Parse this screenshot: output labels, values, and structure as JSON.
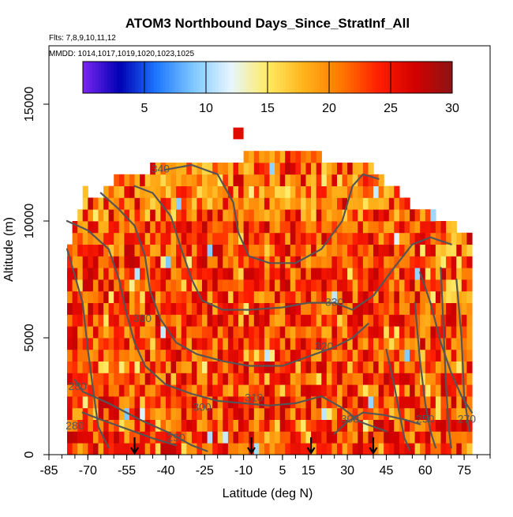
{
  "chart_data": {
    "type": "heatmap",
    "title": "ATOM3 Northbound Days_Since_StratInf_All",
    "flights_note": "Flts: 7,8,9,10,11,12",
    "dates_note": "MMDD: 1014,1017,1019,1020,1023,1025",
    "xlabel": "Latitude (deg N)",
    "ylabel": "Altitude (m)",
    "xlim": [
      -85,
      85
    ],
    "ylim": [
      0,
      17500
    ],
    "x_ticks": [
      -85,
      -70,
      -55,
      -40,
      -25,
      -10,
      5,
      15,
      30,
      45,
      60,
      75
    ],
    "y_ticks": [
      0,
      5000,
      10000,
      15000
    ],
    "colorbar": {
      "range": [
        0,
        30
      ],
      "ticks": [
        5,
        10,
        15,
        20,
        25,
        30
      ],
      "colors": [
        "#7c26f2",
        "#0000b4",
        "#1e78ff",
        "#7fc8ff",
        "#e6f6ff",
        "#ffeb63",
        "#ffb21a",
        "#ff7800",
        "#ff1e00",
        "#d20000",
        "#8c1414"
      ]
    },
    "arrows_latitude": [
      -52,
      -7,
      16,
      40
    ],
    "contour_labels": [
      {
        "text": "340",
        "lat": -42,
        "alt": 12200
      },
      {
        "text": "300",
        "lat": -49,
        "alt": 5800
      },
      {
        "text": "330",
        "lat": 25,
        "alt": 6500
      },
      {
        "text": "320",
        "lat": 21,
        "alt": 4600
      },
      {
        "text": "310",
        "lat": -6,
        "alt": 2400
      },
      {
        "text": "300",
        "lat": -26,
        "alt": 2000
      },
      {
        "text": "280",
        "lat": -74,
        "alt": 2900
      },
      {
        "text": "300",
        "lat": 31,
        "alt": 1500
      },
      {
        "text": "290",
        "lat": -36,
        "alt": 700
      },
      {
        "text": "250",
        "lat": 60,
        "alt": 1500
      },
      {
        "text": "270",
        "lat": 76,
        "alt": 1500
      },
      {
        "text": "280",
        "lat": -75,
        "alt": 1200
      }
    ]
  }
}
